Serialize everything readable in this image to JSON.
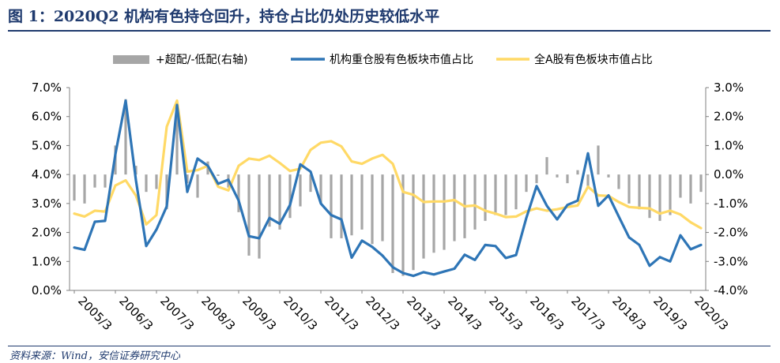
{
  "header": {
    "title": "图 1：2020Q2 机构有色持仓回升，持仓占比仍处历史较低水平"
  },
  "footer": {
    "source": "资料来源：Wind，安信证券研究中心"
  },
  "colors": {
    "bar": "#a6a6a6",
    "institutional": "#2e75b6",
    "all_a": "#ffd966",
    "rule": "#1f3a6e"
  },
  "chart_data": {
    "type": "line",
    "title": "",
    "legend_position": "top",
    "grid": false,
    "x_tick_labels": [
      "2005/3",
      "2006/3",
      "2007/3",
      "2008/3",
      "2009/3",
      "2010/3",
      "2011/3",
      "2012/3",
      "2013/3",
      "2014/3",
      "2015/3",
      "2016/3",
      "2017/3",
      "2018/3",
      "2019/3",
      "2020/3"
    ],
    "x": [
      "2005Q1",
      "2005Q2",
      "2005Q3",
      "2005Q4",
      "2006Q1",
      "2006Q2",
      "2006Q3",
      "2006Q4",
      "2007Q1",
      "2007Q2",
      "2007Q3",
      "2007Q4",
      "2008Q1",
      "2008Q2",
      "2008Q3",
      "2008Q4",
      "2009Q1",
      "2009Q2",
      "2009Q3",
      "2009Q4",
      "2010Q1",
      "2010Q2",
      "2010Q3",
      "2010Q4",
      "2011Q1",
      "2011Q2",
      "2011Q3",
      "2011Q4",
      "2012Q1",
      "2012Q2",
      "2012Q3",
      "2012Q4",
      "2013Q1",
      "2013Q2",
      "2013Q3",
      "2013Q4",
      "2014Q1",
      "2014Q2",
      "2014Q3",
      "2014Q4",
      "2015Q1",
      "2015Q2",
      "2015Q3",
      "2015Q4",
      "2016Q1",
      "2016Q2",
      "2016Q3",
      "2016Q4",
      "2017Q1",
      "2017Q2",
      "2017Q3",
      "2017Q4",
      "2018Q1",
      "2018Q2",
      "2018Q3",
      "2018Q4",
      "2019Q1",
      "2019Q2",
      "2019Q3",
      "2019Q4",
      "2020Q1",
      "2020Q2"
    ],
    "y_left": {
      "range": [
        0,
        7
      ],
      "ticks": [
        "0.0%",
        "1.0%",
        "2.0%",
        "3.0%",
        "4.0%",
        "5.0%",
        "6.0%",
        "7.0%"
      ]
    },
    "y_right": {
      "range": [
        -4,
        3
      ],
      "ticks": [
        "-4.0%",
        "-3.0%",
        "-2.0%",
        "-1.0%",
        "0.0%",
        "1.0%",
        "2.0%",
        "3.0%"
      ]
    },
    "series": [
      {
        "name": "+超配/-低配(右轴)",
        "type": "bar",
        "axis": "right",
        "values": [
          -0.9,
          -1.0,
          -0.45,
          -0.45,
          1.0,
          2.6,
          0.3,
          -0.6,
          -0.5,
          -1.2,
          2.2,
          -0.3,
          -0.8,
          0.45,
          -0.05,
          -0.45,
          -1.3,
          -2.8,
          -2.9,
          -1.8,
          -1.9,
          -1.5,
          -1.1,
          -0.6,
          -1.0,
          -2.2,
          -2.2,
          -2.1,
          -1.9,
          -2.4,
          -2.3,
          -3.4,
          -3.5,
          -3.3,
          -2.9,
          -2.7,
          -2.6,
          -2.3,
          -2.2,
          -1.9,
          -1.6,
          -1.4,
          -1.4,
          -1.2,
          -0.6,
          -0.3,
          0.6,
          -0.1,
          -0.3,
          0.15,
          -0.4,
          1.0,
          -0.1,
          -0.5,
          -1.0,
          -1.2,
          -1.5,
          -1.6,
          -1.4,
          -0.8,
          -1.0,
          -0.6
        ]
      },
      {
        "name": "机构重仓股有色板块市值占比",
        "type": "line",
        "axis": "left",
        "values": [
          1.48,
          1.4,
          2.37,
          2.4,
          4.7,
          6.55,
          3.8,
          1.53,
          2.1,
          2.9,
          6.4,
          3.4,
          4.55,
          4.3,
          3.68,
          3.82,
          3.1,
          1.87,
          1.8,
          2.5,
          2.3,
          2.95,
          4.35,
          4.1,
          3.0,
          2.6,
          2.45,
          1.13,
          1.72,
          1.5,
          1.2,
          0.8,
          0.6,
          0.5,
          0.63,
          0.55,
          0.65,
          0.75,
          1.23,
          1.05,
          1.57,
          1.53,
          1.12,
          1.22,
          2.5,
          3.6,
          2.92,
          2.45,
          2.95,
          3.1,
          4.73,
          2.92,
          3.28,
          2.55,
          1.83,
          1.57,
          0.85,
          1.15,
          1.0,
          1.9,
          1.42,
          1.57
        ]
      },
      {
        "name": "全A股有色板块市值占比",
        "type": "line",
        "axis": "left",
        "values": [
          2.65,
          2.55,
          2.75,
          2.72,
          3.62,
          3.8,
          3.27,
          2.28,
          2.6,
          5.65,
          6.55,
          4.1,
          4.15,
          4.3,
          3.58,
          3.45,
          4.3,
          4.55,
          4.5,
          4.65,
          4.4,
          4.12,
          4.2,
          4.85,
          5.1,
          5.15,
          4.97,
          4.45,
          4.37,
          4.55,
          4.68,
          4.37,
          3.4,
          3.3,
          3.05,
          3.07,
          3.07,
          3.12,
          2.9,
          2.93,
          2.75,
          2.65,
          2.53,
          2.55,
          2.73,
          2.83,
          2.75,
          2.8,
          2.88,
          2.93,
          3.58,
          3.28,
          3.26,
          3.05,
          2.88,
          2.85,
          2.83,
          2.65,
          2.75,
          2.62,
          2.35,
          2.15
        ]
      }
    ]
  }
}
